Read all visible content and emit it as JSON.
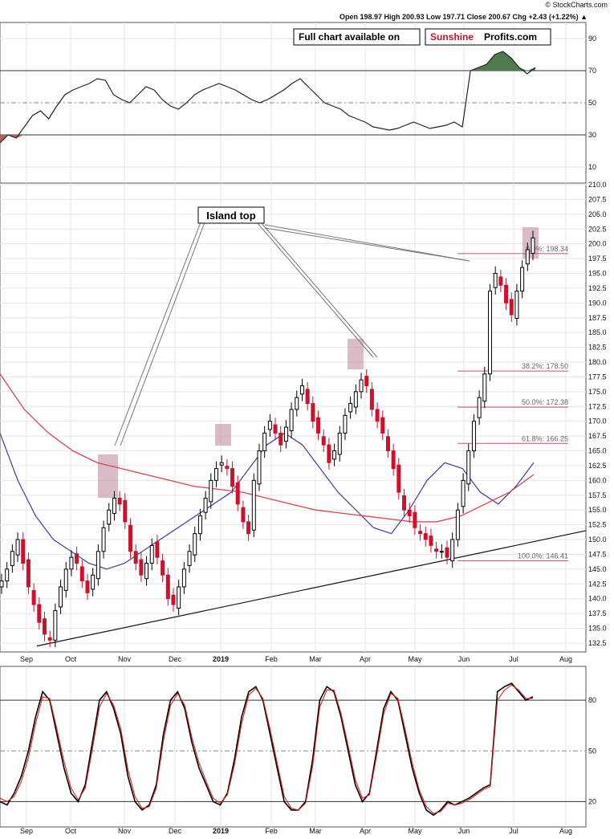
{
  "header": {
    "brand": "© StockCharts.com",
    "quote_text": "Open 198.97  High 200.93  Low 197.71  Close 200.67  Chg +2.43 (+1.22%) ▲"
  },
  "banner": {
    "label": "Full chart available on",
    "brand_red": "Sunshine",
    "brand_black": "Profits.com"
  },
  "annotation": {
    "island_top": "Island top"
  },
  "x_axis": {
    "months": [
      "Sep",
      "Oct",
      "Nov",
      "Dec",
      "2019",
      "Feb",
      "Mar",
      "Apr",
      "May",
      "Jun",
      "Jul",
      "Aug"
    ]
  },
  "chart_data": [
    {
      "type": "line",
      "panel": "RSI",
      "ylim": [
        0,
        100
      ],
      "ticks": [
        "90",
        "70",
        "50",
        "30",
        "10"
      ],
      "tick_values": [
        90,
        70,
        50,
        30,
        10
      ],
      "reference_lines": [
        70,
        50,
        30
      ],
      "series": [
        {
          "values": [
            25,
            30,
            28,
            35,
            42,
            45,
            40,
            48,
            55,
            58,
            60,
            62,
            65,
            64,
            55,
            52,
            50,
            55,
            60,
            58,
            52,
            48,
            46,
            50,
            55,
            58,
            60,
            62,
            60,
            58,
            55,
            52,
            50,
            52,
            55,
            58,
            62,
            65,
            60,
            55,
            50,
            48,
            46,
            42,
            40,
            38,
            35,
            34,
            33,
            34,
            36,
            38,
            36,
            34,
            35,
            36,
            38,
            35,
            70,
            72,
            74,
            80,
            82,
            78,
            72,
            68,
            72
          ]
        }
      ],
      "color": "#222222",
      "overbought_fill": "#4e7a4e",
      "oversold_fill": "#b06060"
    },
    {
      "type": "candlestick",
      "panel": "Price",
      "ylim": [
        131,
        210
      ],
      "ticks": [
        "210.0",
        "207.5",
        "205.0",
        "202.5",
        "200.0",
        "197.5",
        "195.0",
        "192.5",
        "190.0",
        "187.5",
        "185.0",
        "182.5",
        "180.0",
        "177.5",
        "175.0",
        "172.5",
        "170.0",
        "167.5",
        "165.0",
        "162.5",
        "160.0",
        "157.5",
        "155.0",
        "152.5",
        "150.0",
        "147.5",
        "145.0",
        "142.5",
        "140.0",
        "137.5",
        "135.0",
        "132.5"
      ],
      "tick_values": [
        210,
        207.5,
        205,
        202.5,
        200,
        197.5,
        195,
        192.5,
        190,
        187.5,
        185,
        182.5,
        180,
        177.5,
        175,
        172.5,
        170,
        167.5,
        165,
        162.5,
        160,
        157.5,
        155,
        152.5,
        150,
        147.5,
        145,
        142.5,
        140,
        137.5,
        135,
        132.5
      ],
      "closes": [
        143,
        145,
        148,
        150,
        146,
        142,
        139,
        136,
        134,
        133,
        138,
        142,
        145,
        147,
        146,
        143,
        141,
        144,
        148,
        152,
        155,
        157,
        156,
        153,
        148,
        146,
        144,
        146,
        149,
        147,
        144,
        140,
        139,
        142,
        145,
        148,
        151,
        154,
        157,
        160,
        162,
        163,
        162,
        159,
        156,
        153,
        151,
        160,
        165,
        168,
        170,
        168,
        166,
        169,
        172,
        174,
        176,
        173,
        170,
        168,
        166,
        163,
        165,
        168,
        171,
        173,
        175,
        177,
        176,
        172,
        170,
        168,
        165,
        162,
        158,
        155,
        154,
        152,
        151,
        150,
        149,
        148,
        148,
        147,
        150,
        155,
        160,
        165,
        170,
        174,
        178,
        192,
        195,
        193,
        190,
        188,
        192,
        196,
        199,
        201
      ],
      "up_color": "#000000",
      "down_color": "#d0102a",
      "ma_50": {
        "name": "50-day MA",
        "color": "#4a4aa0",
        "values": [
          168,
          160,
          154,
          150,
          148,
          146,
          145,
          146,
          148,
          150,
          152,
          154,
          156,
          158,
          162,
          166,
          168,
          166,
          162,
          158,
          155,
          152,
          151,
          155,
          160,
          163,
          162,
          158,
          156,
          159,
          163
        ]
      },
      "ma_200": {
        "name": "200-day MA",
        "color": "#e04050",
        "values": [
          178,
          172,
          168,
          165,
          163,
          162,
          161,
          160,
          159,
          158.5,
          158,
          157,
          156,
          155,
          154.5,
          154,
          153.5,
          153,
          153,
          154,
          156,
          158,
          161
        ]
      },
      "fib_levels": [
        {
          "label": "0.0%: 198.34",
          "value": 198.34
        },
        {
          "label": "38.2%: 178.50",
          "value": 178.5
        },
        {
          "label": "50.0%: 172.38",
          "value": 172.38
        },
        {
          "label": "61.8%: 166.25",
          "value": 166.25
        },
        {
          "label": "100.0%: 146.41",
          "value": 146.41
        }
      ],
      "fib_color": "#d05060",
      "highlight_color": "#c9a0b0"
    },
    {
      "type": "line",
      "panel": "Stochastic",
      "ylim": [
        5,
        100
      ],
      "ticks": [
        "80",
        "50",
        "20"
      ],
      "tick_values": [
        80,
        50,
        20
      ],
      "reference_lines": [
        80,
        50,
        20
      ],
      "series": [
        {
          "color": "#000000",
          "values": [
            20,
            18,
            25,
            35,
            50,
            70,
            85,
            80,
            60,
            40,
            25,
            20,
            30,
            55,
            80,
            85,
            75,
            60,
            35,
            20,
            15,
            18,
            30,
            60,
            80,
            85,
            75,
            55,
            40,
            30,
            20,
            18,
            25,
            45,
            70,
            85,
            88,
            80,
            60,
            40,
            20,
            15,
            15,
            20,
            45,
            80,
            88,
            85,
            70,
            50,
            30,
            20,
            25,
            50,
            75,
            85,
            80,
            60,
            40,
            25,
            15,
            12,
            15,
            20,
            18,
            20,
            22,
            25,
            28,
            30,
            85,
            88,
            90,
            85,
            80,
            82
          ]
        },
        {
          "color": "#e02020",
          "values": [
            22,
            20,
            23,
            32,
            46,
            66,
            82,
            81,
            63,
            44,
            28,
            21,
            28,
            51,
            76,
            84,
            77,
            63,
            39,
            23,
            16,
            17,
            28,
            56,
            77,
            84,
            77,
            58,
            43,
            32,
            22,
            19,
            24,
            42,
            66,
            83,
            87,
            81,
            63,
            43,
            23,
            16,
            15,
            19,
            41,
            76,
            86,
            86,
            72,
            53,
            33,
            22,
            24,
            47,
            72,
            84,
            81,
            63,
            43,
            27,
            17,
            13,
            14,
            19,
            18,
            19,
            21,
            24,
            27,
            29,
            80,
            86,
            89,
            86,
            81,
            81
          ]
        }
      ]
    }
  ]
}
